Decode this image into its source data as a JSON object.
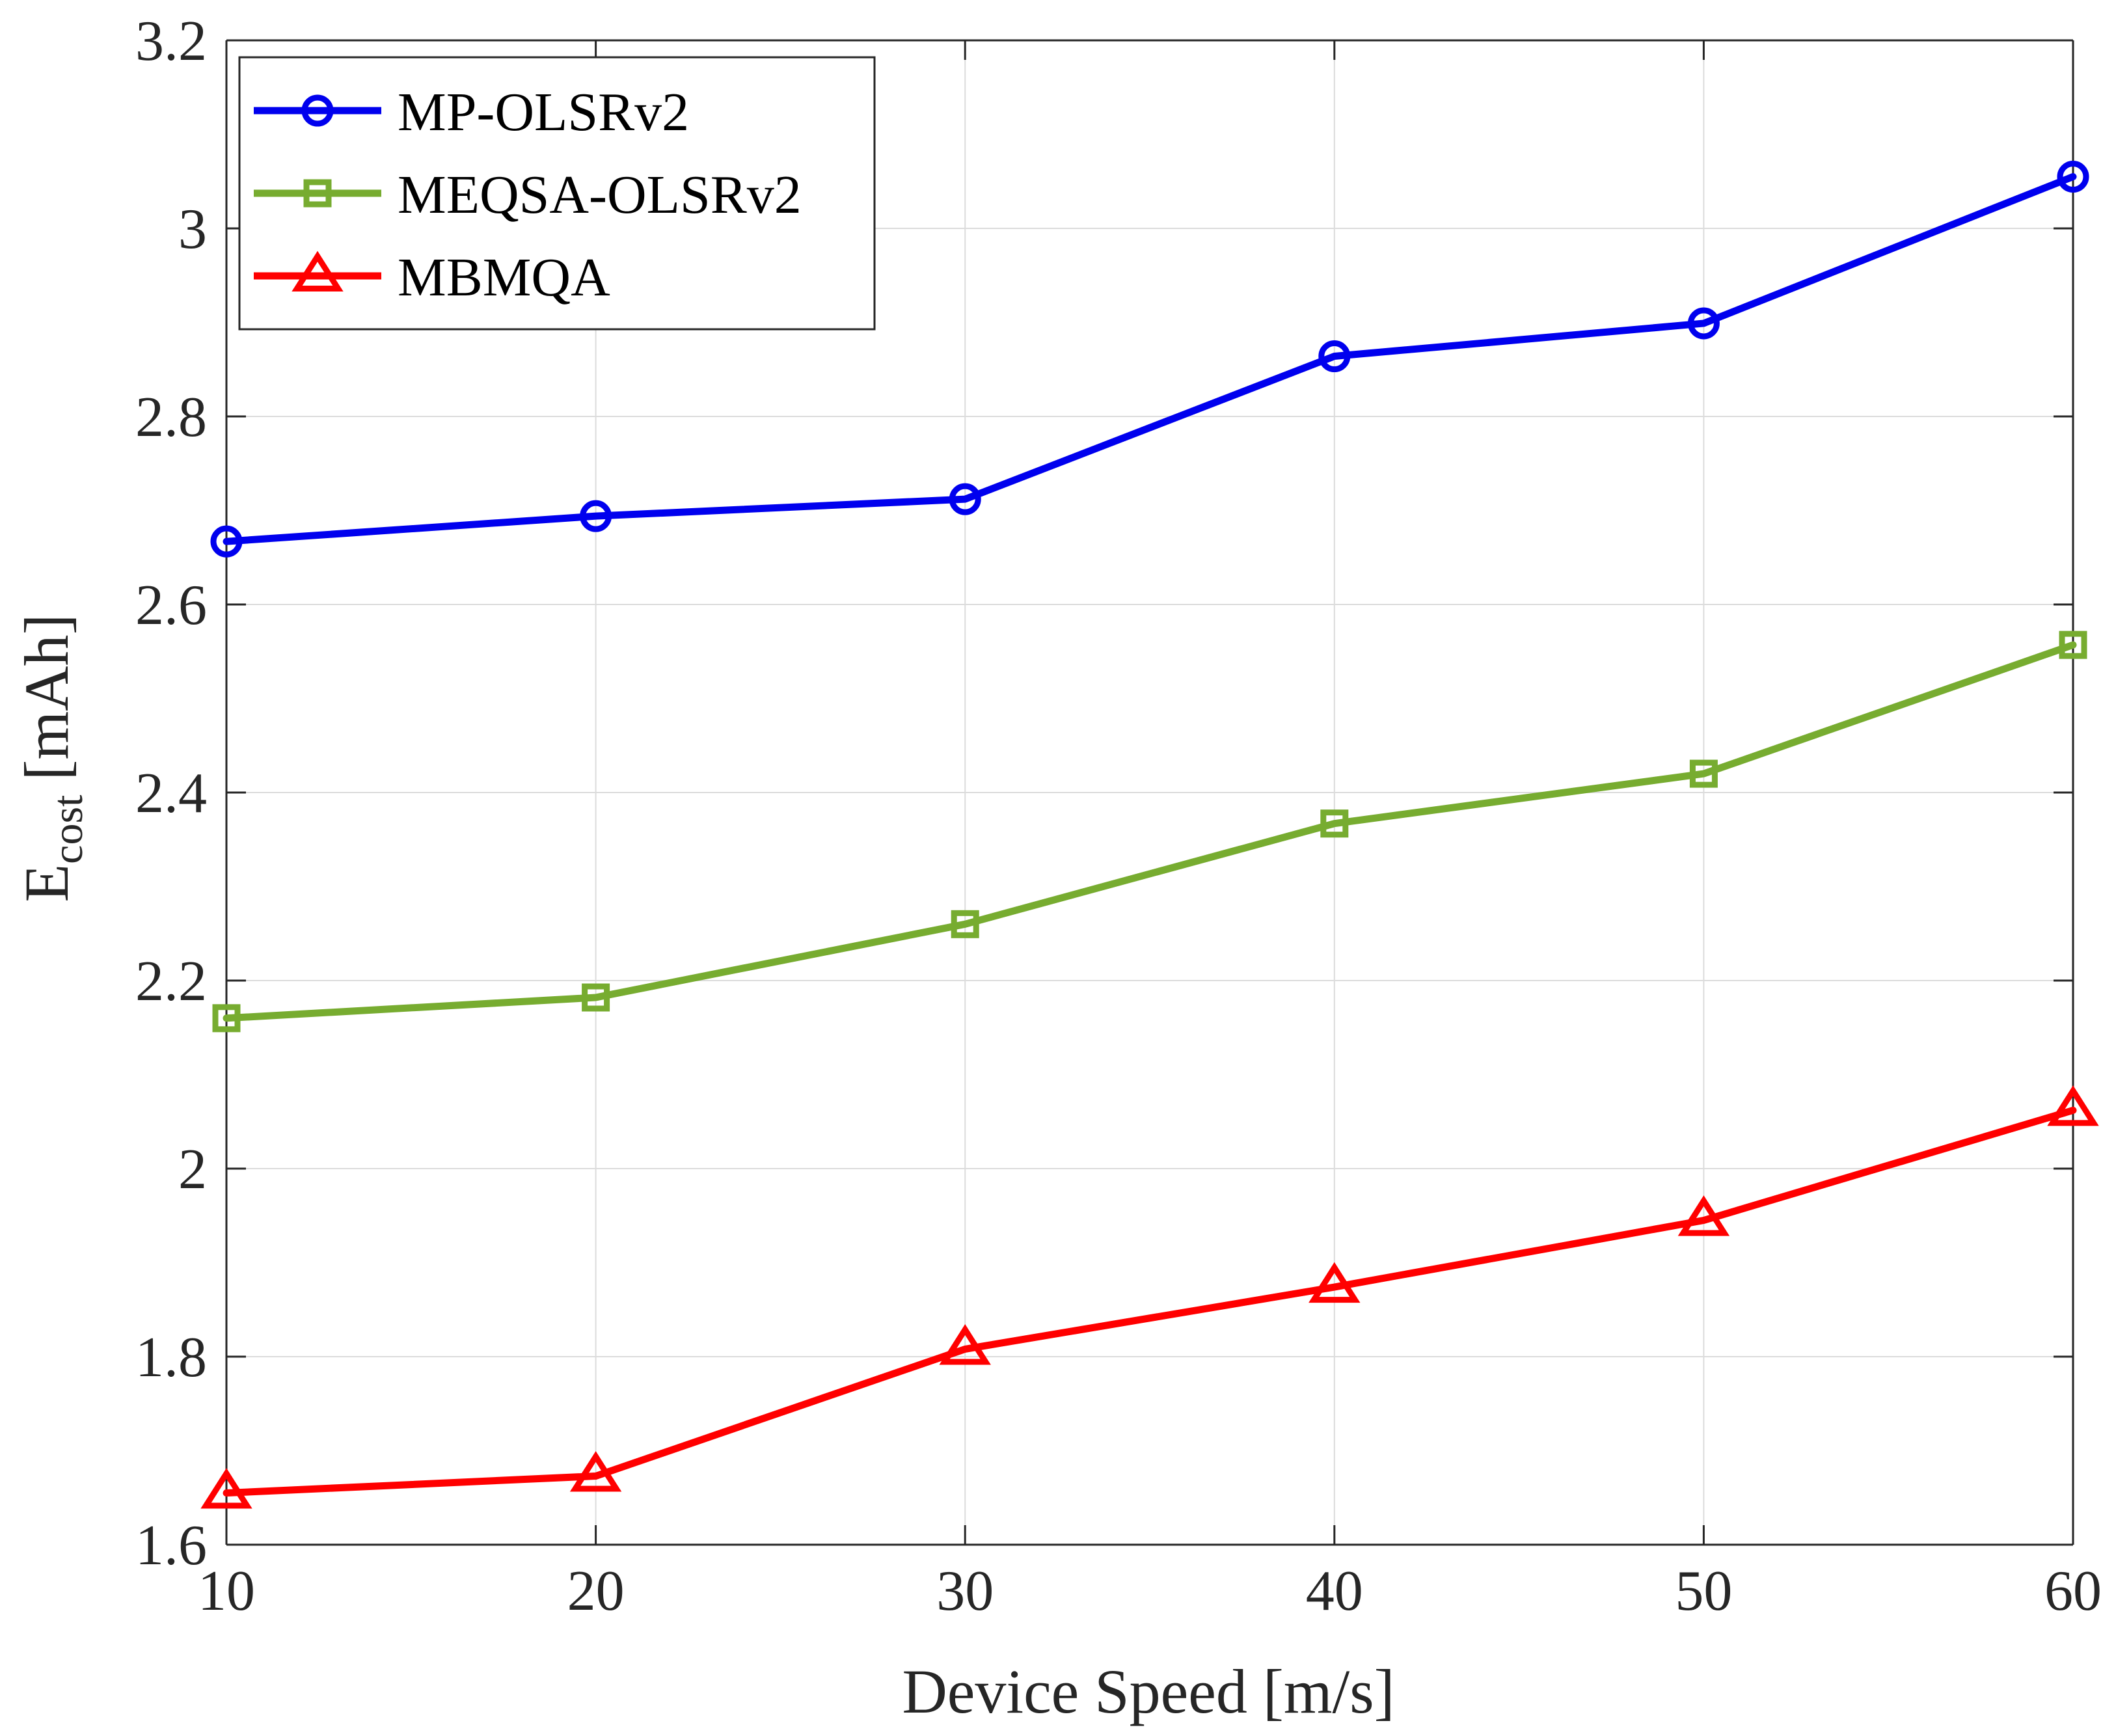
{
  "chart_data": {
    "type": "line",
    "title": "",
    "xlabel": "Device Speed [m/s]",
    "ylabel": {
      "main": "E",
      "subscript": "cost",
      "unit": "[mAh]"
    },
    "x": [
      10,
      20,
      30,
      40,
      50,
      60
    ],
    "xlim": [
      10,
      60
    ],
    "ylim": [
      1.6,
      3.2
    ],
    "xticks": [
      10,
      20,
      30,
      40,
      50,
      60
    ],
    "xtick_labels": [
      "10",
      "20",
      "30",
      "40",
      "50",
      "60"
    ],
    "yticks": [
      1.6,
      1.8,
      2.0,
      2.2,
      2.4,
      2.6,
      2.8,
      3.0,
      3.2
    ],
    "ytick_labels": [
      "1.6",
      "1.8",
      "2",
      "2.2",
      "2.4",
      "2.6",
      "2.8",
      "3",
      "3.2"
    ],
    "grid": true,
    "legend_position": "top-left",
    "series": [
      {
        "name": "MP-OLSRv2",
        "color": "#0000ee",
        "marker": "circle",
        "values": [
          2.667,
          2.694,
          2.712,
          2.864,
          2.899,
          3.055
        ]
      },
      {
        "name": "MEQSA-OLSRv2",
        "color": "#77ac30",
        "marker": "square",
        "values": [
          2.16,
          2.182,
          2.26,
          2.367,
          2.42,
          2.557
        ]
      },
      {
        "name": "MBMQA",
        "color": "#ff0000",
        "marker": "triangle",
        "values": [
          1.655,
          1.673,
          1.808,
          1.874,
          1.945,
          2.062
        ]
      }
    ]
  }
}
